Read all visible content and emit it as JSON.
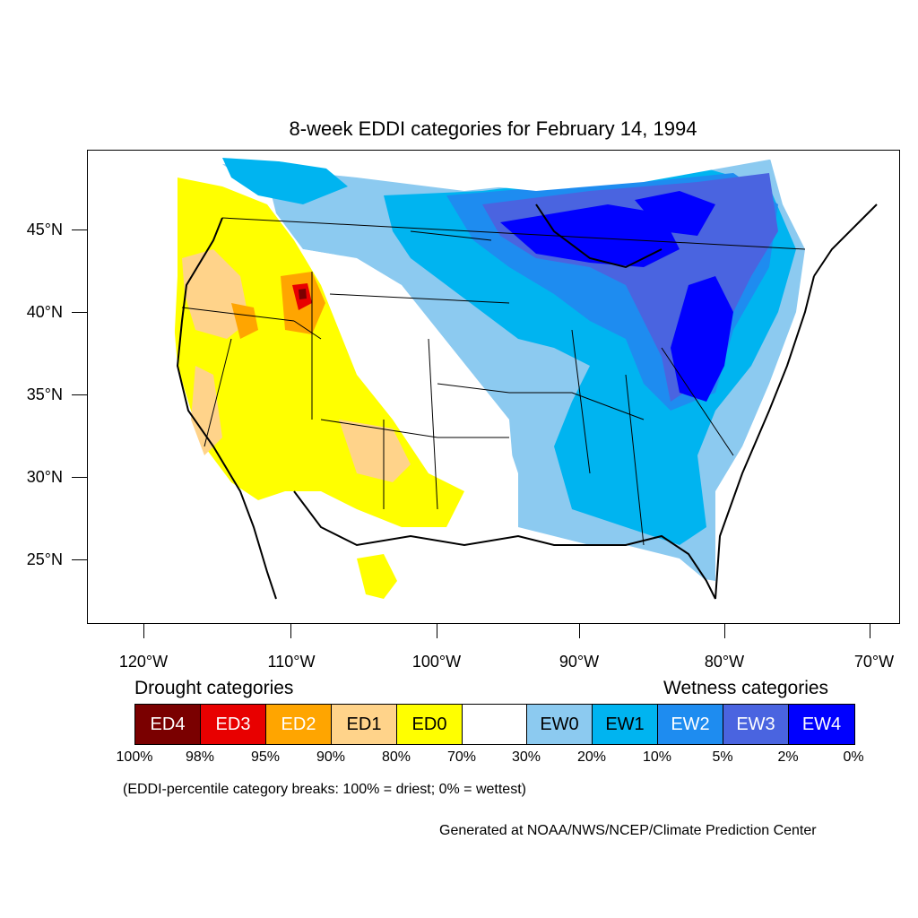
{
  "title": "8-week EDDI categories for February 14, 1994",
  "lat_labels": [
    "45°N",
    "40°N",
    "35°N",
    "30°N",
    "25°N"
  ],
  "lon_labels": [
    "120°W",
    "110°W",
    "100°W",
    "90°W",
    "80°W",
    "70°W"
  ],
  "legend": {
    "drought_heading": "Drought categories",
    "wetness_heading": "Wetness categories",
    "categories": [
      {
        "label": "ED4",
        "color": "#7a0000",
        "text_color": "#ffffff"
      },
      {
        "label": "ED3",
        "color": "#e80000",
        "text_color": "#ffffff"
      },
      {
        "label": "ED2",
        "color": "#ffa500",
        "text_color": "#ffffff"
      },
      {
        "label": "ED1",
        "color": "#ffd38a",
        "text_color": "#000000"
      },
      {
        "label": "ED0",
        "color": "#ffff00",
        "text_color": "#000000"
      },
      {
        "label": "",
        "color": "#ffffff",
        "text_color": "#000000"
      },
      {
        "label": "EW0",
        "color": "#8ccaf0",
        "text_color": "#000000"
      },
      {
        "label": "EW1",
        "color": "#00b4f0",
        "text_color": "#000000"
      },
      {
        "label": "EW2",
        "color": "#1e8cf0",
        "text_color": "#ffffff"
      },
      {
        "label": "EW3",
        "color": "#4a64e0",
        "text_color": "#ffffff"
      },
      {
        "label": "EW4",
        "color": "#0000ff",
        "text_color": "#ffffff"
      }
    ],
    "breaks": [
      "100%",
      "98%",
      "95%",
      "90%",
      "80%",
      "70%",
      "30%",
      "20%",
      "10%",
      "5%",
      "2%",
      "0%"
    ]
  },
  "note": "(EDDI-percentile category breaks: 100% = driest; 0% = wettest)",
  "credit": "Generated at NOAA/NWS/NCEP/Climate Prediction Center"
}
